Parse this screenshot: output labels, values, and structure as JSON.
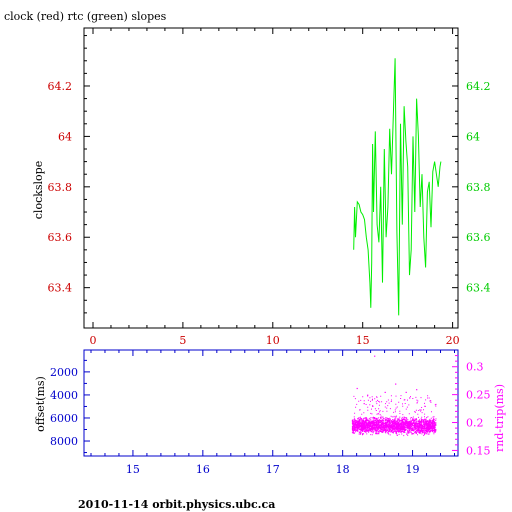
{
  "title": "clock (red) rtc (green) slopes",
  "footer": "2010-11-14 orbit.physics.ubc.ca",
  "colors": {
    "clock": "#cc0000",
    "rtc": "#00ee00",
    "offset": "#0000cc",
    "rndtrip": "#ff00ff",
    "axes": "#000000"
  },
  "chart_data": [
    {
      "type": "line",
      "ylabel": "clockslope",
      "xlim": [
        -0.5,
        20.3
      ],
      "ylim": [
        63.24,
        64.43
      ],
      "xticks": [
        0,
        5,
        10,
        15,
        20
      ],
      "yticks": [
        63.4,
        63.6,
        63.8,
        64,
        64.2
      ],
      "ytick_labels": [
        "63.4",
        "63.6",
        "63.8",
        "64",
        "64.2"
      ],
      "grid": false,
      "series": [
        {
          "name": "rtc",
          "x": [
            14.5,
            14.55,
            14.6,
            14.7,
            14.8,
            14.9,
            15.0,
            15.1,
            15.2,
            15.3,
            15.4,
            15.45,
            15.5,
            15.55,
            15.6,
            15.7,
            15.8,
            15.9,
            16.0,
            16.1,
            16.2,
            16.3,
            16.4,
            16.5,
            16.6,
            16.7,
            16.8,
            16.9,
            17.0,
            17.1,
            17.2,
            17.3,
            17.4,
            17.5,
            17.6,
            17.7,
            17.8,
            17.9,
            18.0,
            18.1,
            18.2,
            18.3,
            18.4,
            18.5,
            18.6,
            18.7,
            18.8,
            18.9,
            19.0,
            19.1,
            19.2,
            19.3,
            19.35
          ],
          "y": [
            63.55,
            63.72,
            63.6,
            63.74,
            63.73,
            63.7,
            63.69,
            63.67,
            63.6,
            63.55,
            63.42,
            63.32,
            63.5,
            63.97,
            63.7,
            64.02,
            63.65,
            63.58,
            63.8,
            63.42,
            63.95,
            63.6,
            63.72,
            64.03,
            63.85,
            64.08,
            64.31,
            63.62,
            63.29,
            64.05,
            63.65,
            64.12,
            63.98,
            63.88,
            63.45,
            63.55,
            64.0,
            63.7,
            64.15,
            64.0,
            63.72,
            63.85,
            63.6,
            63.48,
            63.78,
            63.82,
            63.64,
            63.86,
            63.9,
            63.85,
            63.8,
            63.88,
            63.9
          ]
        }
      ]
    },
    {
      "type": "scatter",
      "ylabel": "offset(ms)",
      "y2label": "rnd-trip(ms)",
      "xlim": [
        14.3,
        19.65
      ],
      "ylim_offset": [
        9300,
        100
      ],
      "ylim_rndtrip": [
        0.14,
        0.33
      ],
      "xticks": [
        15,
        16,
        17,
        18,
        19
      ],
      "yticks_offset": [
        2000,
        4000,
        6000,
        8000
      ],
      "yticks_rndtrip": [
        0.15,
        0.2,
        0.25,
        0.3
      ],
      "ytick_labels_rndtrip": [
        "0.15",
        "0.2",
        "0.25",
        "0.3"
      ],
      "series": [
        {
          "name": "rnd-trip",
          "x_range": [
            18.13,
            19.33
          ],
          "typical_range": [
            0.175,
            0.215
          ],
          "outliers": [
            [
              18.2,
              0.262
            ],
            [
              18.35,
              0.25
            ],
            [
              18.45,
              0.32
            ],
            [
              18.6,
              0.255
            ],
            [
              18.75,
              0.27
            ],
            [
              18.9,
              0.255
            ],
            [
              19.05,
              0.26
            ],
            [
              19.25,
              0.24
            ],
            [
              18.3,
              0.235
            ],
            [
              18.95,
              0.245
            ]
          ]
        }
      ]
    }
  ]
}
